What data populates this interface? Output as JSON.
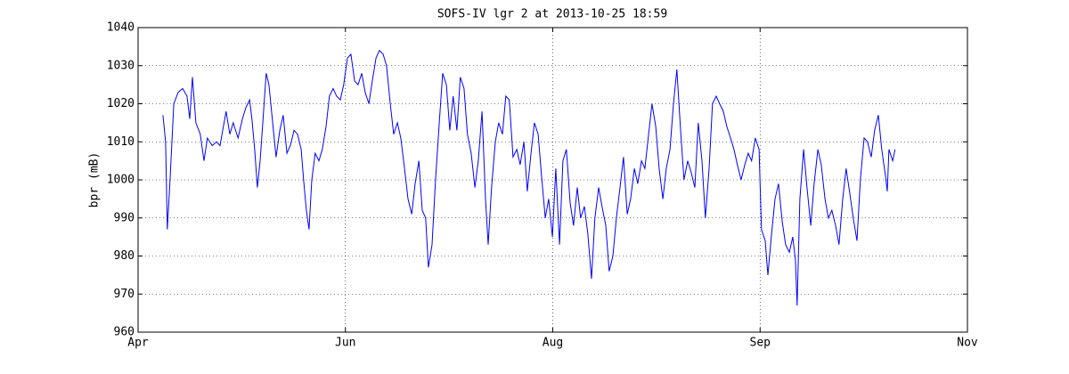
{
  "chart_data": {
    "type": "line",
    "title": "SOFS-IV lgr 2 at 2013-10-25 18:59",
    "ylabel": "bpr (mB)",
    "xlim": [
      0,
      244
    ],
    "xticks": [
      {
        "value": 0,
        "label": "Apr"
      },
      {
        "value": 61,
        "label": "Jun"
      },
      {
        "value": 122,
        "label": "Aug"
      },
      {
        "value": 183,
        "label": "Sep"
      },
      {
        "value": 244,
        "label": "Nov"
      }
    ],
    "ylim": [
      960,
      1040
    ],
    "yticks": [
      960,
      970,
      980,
      990,
      1000,
      1010,
      1020,
      1030,
      1040
    ],
    "grid": true,
    "series": [
      {
        "name": "bpr",
        "color": "#0000ff",
        "x": [
          7.3,
          8.1,
          8.6,
          9.4,
          10.5,
          11.8,
          13.1,
          14.4,
          15.2,
          16.0,
          17.0,
          18.3,
          19.4,
          20.4,
          21.8,
          23.1,
          24.1,
          24.9,
          25.9,
          27.0,
          28.0,
          29.4,
          30.7,
          31.7,
          32.8,
          33.5,
          34.3,
          35.1,
          35.9,
          36.7,
          37.7,
          38.5,
          39.6,
          40.6,
          41.7,
          42.7,
          43.8,
          44.8,
          45.9,
          46.9,
          48.0,
          48.7,
          49.5,
          50.3,
          51.1,
          52.1,
          53.2,
          54.2,
          55.3,
          56.3,
          57.4,
          58.4,
          59.5,
          60.5,
          61.6,
          62.6,
          63.7,
          64.7,
          65.8,
          66.8,
          67.9,
          68.9,
          70.0,
          71.0,
          72.1,
          73.1,
          74.2,
          75.2,
          76.3,
          77.3,
          78.4,
          79.4,
          80.5,
          81.5,
          82.6,
          83.6,
          84.6,
          85.4,
          86.5,
          87.5,
          88.6,
          89.6,
          90.7,
          91.7,
          92.7,
          93.8,
          94.8,
          95.9,
          96.9,
          98.0,
          99.1,
          100.1,
          101.2,
          102.2,
          103.0,
          104.0,
          105.1,
          106.1,
          107.2,
          108.2,
          109.2,
          110.3,
          111.4,
          112.4,
          113.5,
          114.5,
          115.6,
          116.6,
          117.7,
          118.7,
          119.8,
          120.8,
          121.9,
          122.9,
          124.0,
          125.0,
          126.0,
          127.1,
          128.1,
          129.2,
          130.2,
          131.3,
          132.3,
          133.4,
          134.4,
          135.5,
          136.5,
          137.6,
          138.6,
          139.7,
          140.7,
          141.8,
          142.8,
          143.9,
          144.9,
          146.0,
          147.0,
          148.1,
          149.1,
          150.2,
          151.2,
          152.3,
          153.3,
          154.4,
          155.4,
          156.5,
          157.5,
          158.5,
          159.6,
          160.6,
          161.7,
          162.7,
          163.8,
          164.8,
          165.9,
          166.9,
          168.0,
          169.0,
          170.1,
          171.1,
          172.2,
          173.2,
          174.3,
          175.3,
          176.3,
          177.4,
          178.5,
          179.5,
          180.5,
          181.6,
          182.7,
          183.4,
          184.5,
          185.3,
          186.3,
          187.4,
          188.4,
          189.5,
          190.5,
          191.6,
          192.6,
          193.4,
          193.9,
          194.7,
          195.8,
          196.8,
          197.9,
          198.9,
          200.0,
          201.0,
          202.1,
          203.1,
          204.1,
          205.2,
          206.2,
          207.3,
          208.3,
          209.3,
          210.4,
          211.5,
          212.5,
          213.6,
          214.6,
          215.7,
          216.7,
          217.8,
          218.8,
          219.9,
          220.4,
          220.9,
          222.0,
          222.7
        ],
        "values": [
          1017,
          1010,
          987,
          1000,
          1020,
          1023,
          1024,
          1022,
          1016,
          1027,
          1015,
          1012,
          1005,
          1011,
          1009,
          1010,
          1009,
          1013,
          1018,
          1012,
          1015,
          1011,
          1016,
          1019,
          1021,
          1016,
          1008,
          998,
          1005,
          1015,
          1028,
          1025,
          1015,
          1006,
          1013,
          1017,
          1007,
          1009,
          1013,
          1012,
          1008,
          1000,
          992,
          987,
          1000,
          1007,
          1005,
          1008,
          1014,
          1022,
          1024,
          1022,
          1021,
          1025,
          1032,
          1033,
          1026,
          1025,
          1028,
          1023,
          1020,
          1026,
          1032,
          1034,
          1033,
          1030,
          1020,
          1012,
          1015,
          1011,
          1003,
          995,
          991,
          999,
          1005,
          992,
          990,
          977,
          983,
          1000,
          1015,
          1028,
          1025,
          1013,
          1022,
          1013,
          1027,
          1024,
          1012,
          1007,
          998,
          1005,
          1018,
          995,
          983,
          998,
          1010,
          1015,
          1012,
          1022,
          1021,
          1006,
          1008,
          1004,
          1010,
          997,
          1007,
          1015,
          1012,
          1001,
          990,
          995,
          985,
          1003,
          983,
          1005,
          1008,
          994,
          988,
          998,
          990,
          993,
          986,
          974,
          990,
          998,
          993,
          988,
          976,
          980,
          990,
          998,
          1006,
          991,
          995,
          1003,
          999,
          1005,
          1003,
          1012,
          1020,
          1014,
          1003,
          995,
          1003,
          1008,
          1020,
          1029,
          1013,
          1000,
          1005,
          1002,
          998,
          1015,
          1005,
          990,
          1003,
          1020,
          1022,
          1020,
          1018,
          1014,
          1011,
          1008,
          1004,
          1000,
          1004,
          1007,
          1005,
          1011,
          1008,
          987,
          984,
          975,
          985,
          995,
          999,
          989,
          983,
          981,
          985,
          979,
          967,
          995,
          1008,
          998,
          988,
          999,
          1008,
          1004,
          995,
          990,
          992,
          988,
          983,
          995,
          1003,
          997,
          990,
          984,
          1000,
          1011,
          1010,
          1006,
          1013,
          1017,
          1008,
          1001,
          997,
          1008,
          1005,
          1008
        ]
      }
    ]
  }
}
